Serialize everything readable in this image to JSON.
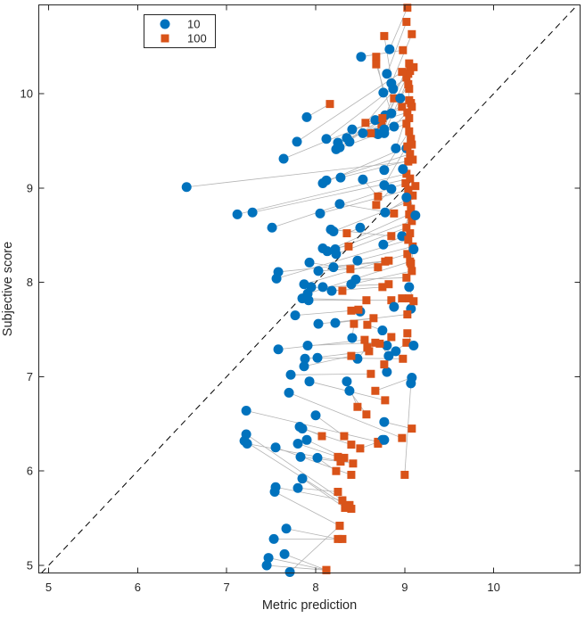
{
  "figure": {
    "background": "#ffffff",
    "axes_color": "#262626",
    "connector_color": "#b4b4b4",
    "identity_line_color": "#000000"
  },
  "chart_data": {
    "type": "scatter",
    "title": "",
    "xlabel": "Metric prediction",
    "ylabel": "Subjective score",
    "xlim": [
      4.89,
      10.97
    ],
    "ylim": [
      4.92,
      10.94
    ],
    "xticks": [
      5,
      6,
      7,
      8,
      9,
      10
    ],
    "yticks": [
      5,
      6,
      7,
      8,
      9,
      10
    ],
    "grid": false,
    "legend_position": "northwest",
    "legend": [
      {
        "label": "10",
        "marker": "circle",
        "color": "#0072BD"
      },
      {
        "label": "100",
        "marker": "square",
        "color": "#D95319"
      }
    ],
    "identity_line": {
      "style": "dashed",
      "color": "#000000",
      "equation": "y = x"
    },
    "connector_lines": {
      "color": "#b4b4b4",
      "width": 0.8
    },
    "pair_format": [
      "x_bitrate10",
      "y_bitrate10",
      "x_bitrate100",
      "y_bitrate100"
    ],
    "pairs": [
      [
        8.51,
        10.39,
        8.98,
        10.46
      ],
      [
        8.83,
        10.47,
        9.03,
        10.91
      ],
      [
        8.85,
        10.11,
        9.08,
        10.63
      ],
      [
        8.87,
        10.05,
        8.77,
        10.61
      ],
      [
        8.76,
        10.01,
        8.68,
        10.39
      ],
      [
        8.85,
        9.79,
        8.68,
        10.31
      ],
      [
        8.78,
        9.77,
        9.05,
        10.32
      ],
      [
        8.7,
        9.57,
        9.06,
        10.24
      ],
      [
        8.77,
        9.58,
        9.1,
        10.28
      ],
      [
        7.9,
        9.75,
        8.16,
        9.89
      ],
      [
        8.12,
        9.52,
        9.02,
        10.17
      ],
      [
        8.25,
        9.48,
        8.74,
        9.67
      ],
      [
        8.38,
        9.49,
        9.04,
        10.21
      ],
      [
        7.79,
        9.49,
        8.97,
        10.23
      ],
      [
        8.27,
        9.43,
        9.05,
        9.93
      ],
      [
        8.9,
        9.42,
        9.07,
        9.9
      ],
      [
        9.02,
        9.42,
        9.05,
        10.05
      ],
      [
        8.88,
        9.65,
        9.08,
        9.86
      ],
      [
        8.67,
        9.72,
        8.56,
        9.69
      ],
      [
        8.68,
        9.58,
        8.62,
        9.58
      ],
      [
        8.77,
        9.62,
        8.88,
        9.95
      ],
      [
        8.53,
        9.58,
        8.97,
        9.86
      ],
      [
        8.41,
        9.62,
        9.03,
        9.8
      ],
      [
        8.35,
        9.53,
        9.05,
        9.74
      ],
      [
        7.64,
        9.31,
        8.75,
        9.74
      ],
      [
        8.23,
        9.41,
        9.02,
        9.68
      ],
      [
        8.8,
        10.21,
        9.02,
        10.76
      ],
      [
        8.95,
        9.95,
        9.04,
        10.1
      ],
      [
        8.53,
        9.09,
        8.7,
        8.91
      ],
      [
        8.77,
        9.19,
        9.05,
        9.6
      ],
      [
        8.77,
        9.03,
        9.07,
        9.52
      ],
      [
        8.85,
        8.99,
        8.68,
        8.82
      ],
      [
        8.08,
        9.05,
        9.03,
        9.44
      ],
      [
        8.12,
        9.08,
        9.06,
        9.36
      ],
      [
        8.28,
        9.11,
        9.09,
        9.3
      ],
      [
        6.55,
        9.01,
        9.04,
        9.28
      ],
      [
        7.12,
        8.72,
        9.02,
        9.15
      ],
      [
        7.29,
        8.74,
        9.06,
        9.1
      ],
      [
        7.51,
        8.58,
        9.01,
        9.05
      ],
      [
        8.98,
        9.2,
        9.08,
        9.46
      ],
      [
        8.27,
        8.83,
        8.88,
        8.73
      ],
      [
        8.05,
        8.73,
        9.04,
        8.98
      ],
      [
        8.78,
        8.74,
        9.09,
        8.92
      ],
      [
        8.17,
        8.56,
        8.85,
        8.49
      ],
      [
        8.2,
        8.54,
        9.03,
        8.85
      ],
      [
        8.5,
        8.58,
        8.35,
        8.52
      ],
      [
        8.97,
        8.49,
        9.07,
        8.78
      ],
      [
        8.08,
        8.36,
        8.37,
        8.38
      ],
      [
        8.13,
        8.33,
        9.05,
        8.72
      ],
      [
        8.22,
        8.35,
        9.08,
        8.65
      ],
      [
        8.23,
        8.3,
        9.02,
        8.58
      ],
      [
        8.76,
        8.4,
        9.06,
        8.52
      ],
      [
        9.12,
        8.71,
        9.05,
        8.92
      ],
      [
        9.02,
        8.9,
        9.12,
        9.02
      ],
      [
        7.93,
        8.21,
        8.39,
        8.14
      ],
      [
        8.03,
        8.12,
        8.7,
        8.16
      ],
      [
        8.2,
        8.16,
        8.78,
        8.22
      ],
      [
        7.58,
        8.11,
        8.82,
        8.23
      ],
      [
        7.56,
        8.04,
        9.04,
        8.45
      ],
      [
        8.47,
        8.23,
        9.09,
        8.38
      ],
      [
        7.87,
        7.98,
        9.03,
        8.3
      ],
      [
        7.95,
        7.95,
        8.3,
        7.91
      ],
      [
        7.91,
        7.88,
        9.06,
        8.22
      ],
      [
        8.18,
        7.91,
        8.75,
        7.95
      ],
      [
        8.08,
        7.95,
        8.82,
        7.98
      ],
      [
        8.4,
        7.98,
        9.08,
        8.12
      ],
      [
        8.45,
        8.03,
        9.02,
        8.05
      ],
      [
        9.1,
        8.35,
        9.07,
        8.2
      ],
      [
        7.85,
        7.83,
        8.57,
        7.81
      ],
      [
        7.92,
        7.81,
        8.85,
        7.81
      ],
      [
        8.88,
        7.74,
        8.97,
        7.83
      ],
      [
        9.07,
        7.72,
        9.05,
        7.83
      ],
      [
        8.5,
        7.69,
        8.48,
        7.71
      ],
      [
        7.77,
        7.65,
        8.4,
        7.7
      ],
      [
        8.03,
        7.56,
        8.65,
        7.62
      ],
      [
        8.22,
        7.57,
        9.03,
        7.66
      ],
      [
        8.75,
        7.49,
        8.58,
        7.55
      ],
      [
        8.41,
        7.41,
        8.43,
        7.56
      ],
      [
        8.8,
        7.33,
        8.85,
        7.42
      ],
      [
        8.9,
        7.27,
        9.02,
        7.36
      ],
      [
        8.82,
        7.22,
        8.72,
        7.35
      ],
      [
        7.58,
        7.29,
        8.55,
        7.39
      ],
      [
        7.91,
        7.33,
        8.67,
        7.36
      ],
      [
        8.47,
        7.19,
        8.58,
        7.31
      ],
      [
        7.88,
        7.19,
        8.6,
        7.27
      ],
      [
        7.87,
        7.11,
        8.4,
        7.22
      ],
      [
        8.02,
        7.2,
        8.98,
        7.19
      ],
      [
        9.1,
        7.33,
        9.03,
        7.46
      ],
      [
        9.05,
        7.95,
        9.1,
        7.8
      ],
      [
        8.8,
        7.05,
        8.77,
        7.13
      ],
      [
        7.72,
        7.02,
        8.62,
        7.03
      ],
      [
        9.08,
        6.99,
        8.67,
        6.85
      ],
      [
        9.07,
        6.93,
        9.0,
        5.96
      ],
      [
        7.93,
        6.95,
        8.78,
        6.75
      ],
      [
        8.35,
        6.95,
        8.47,
        6.68
      ],
      [
        8.38,
        6.85,
        8.57,
        6.6
      ],
      [
        7.7,
        6.83,
        8.97,
        6.35
      ],
      [
        7.22,
        6.64,
        8.7,
        6.31
      ],
      [
        8.0,
        6.59,
        8.32,
        6.37
      ],
      [
        8.77,
        6.52,
        9.08,
        6.45
      ],
      [
        7.82,
        6.47,
        8.07,
        6.37
      ],
      [
        7.85,
        6.45,
        8.4,
        6.28
      ],
      [
        8.75,
        6.33,
        8.7,
        6.29
      ],
      [
        8.77,
        6.33,
        8.5,
        6.24
      ],
      [
        7.23,
        6.29,
        8.42,
        6.08
      ],
      [
        7.55,
        6.25,
        8.4,
        5.96
      ],
      [
        7.8,
        6.29,
        8.25,
        6.15
      ],
      [
        7.9,
        6.33,
        8.32,
        6.14
      ],
      [
        7.83,
        6.15,
        8.28,
        6.1
      ],
      [
        8.02,
        6.14,
        8.23,
        6.0
      ],
      [
        7.22,
        6.39,
        8.38,
        5.64
      ],
      [
        7.2,
        6.32,
        8.4,
        5.6
      ],
      [
        7.85,
        5.92,
        8.33,
        5.61
      ],
      [
        7.8,
        5.82,
        8.25,
        5.78
      ],
      [
        7.55,
        5.83,
        8.3,
        5.69
      ],
      [
        7.54,
        5.78,
        8.27,
        5.42
      ],
      [
        7.67,
        5.39,
        8.25,
        5.28
      ],
      [
        7.53,
        5.28,
        8.3,
        5.28
      ],
      [
        7.65,
        5.12,
        8.12,
        4.95
      ],
      [
        7.47,
        5.08,
        8.12,
        4.95
      ],
      [
        7.45,
        5.0,
        8.12,
        4.95
      ],
      [
        7.71,
        4.93,
        8.27,
        5.42
      ]
    ]
  }
}
